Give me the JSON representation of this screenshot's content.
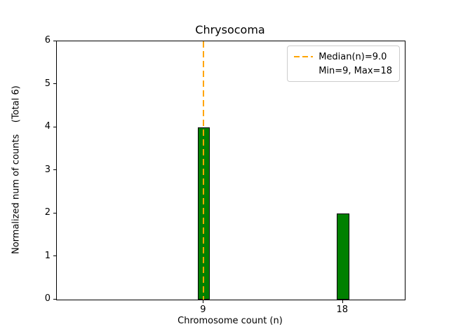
{
  "chart_data": {
    "type": "bar",
    "title": "Chrysocoma",
    "xlabel": "Chromosome count (n)",
    "ylabel": "Normalized num of counts    (Total 6)",
    "categories": [
      9,
      18
    ],
    "values": [
      4,
      2
    ],
    "x_tick_labels": [
      "9",
      "18"
    ],
    "y_ticks": [
      0,
      1,
      2,
      3,
      4,
      5,
      6
    ],
    "xlim": [
      -0.5,
      22
    ],
    "ylim": [
      0,
      6
    ],
    "bar_width_units": 0.8,
    "bar_color": "#008000",
    "bar_edge_color": "#000000",
    "median_line": {
      "x": 9,
      "color": "#FFA500",
      "style": "dashed",
      "label": "Median(n)=9.0"
    },
    "legend": [
      "Median(n)=9.0",
      "Min=9, Max=18"
    ],
    "legend_position": "upper right",
    "grid": false,
    "total_counts": 6
  }
}
